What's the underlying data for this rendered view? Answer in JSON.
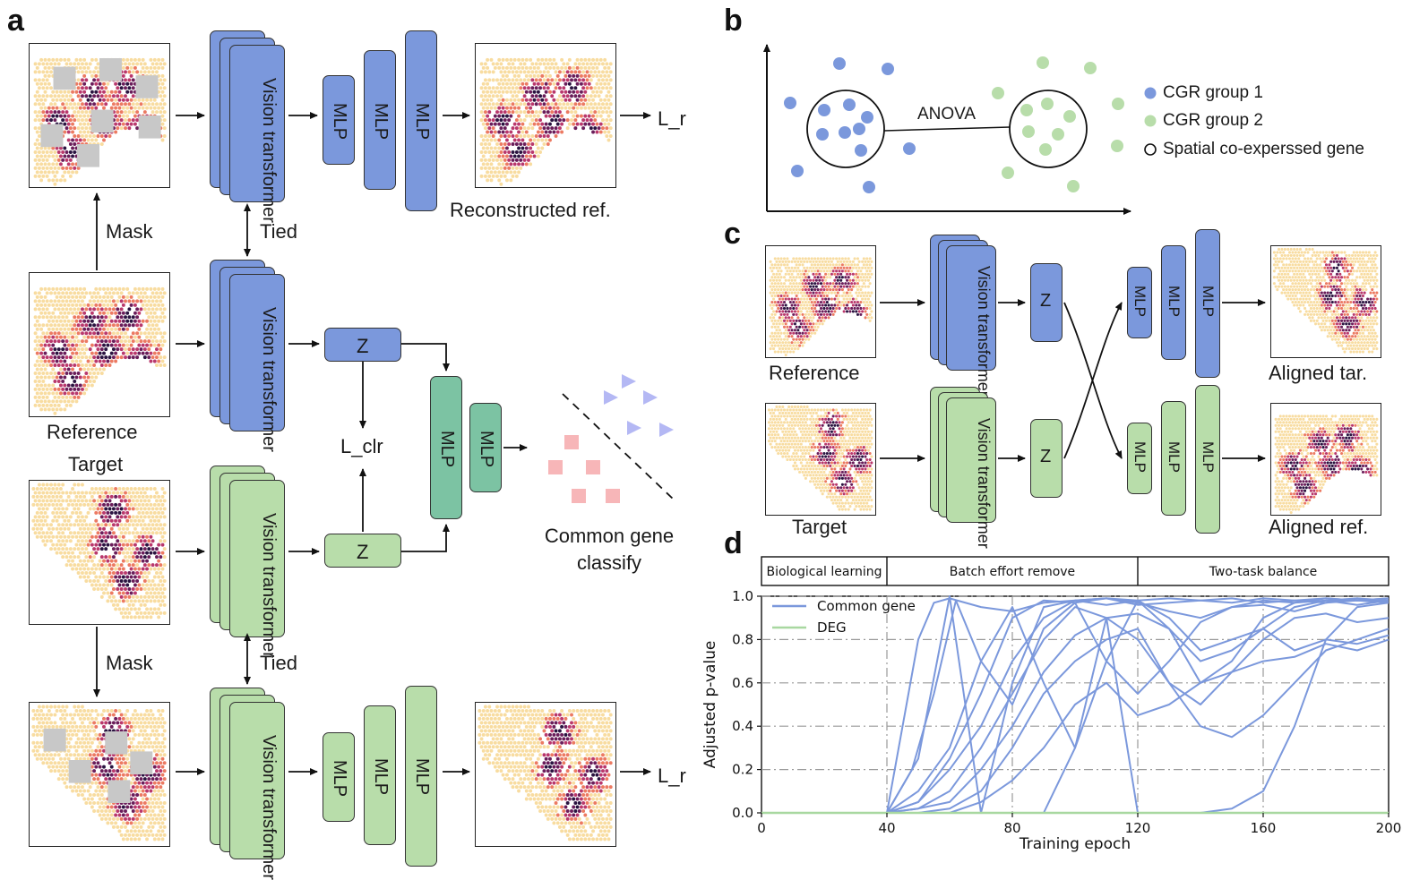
{
  "panels": {
    "a": "a",
    "b": "b",
    "c": "c",
    "d": "d"
  },
  "panel_a": {
    "vision_transformer": "Vision transformer",
    "mlp": "MLP",
    "z": "Z",
    "mask": "Mask",
    "tied": "Tied",
    "loss_r": "L_r",
    "loss_clr": "L_clr",
    "reconstructed_ref": "Reconstructed ref.",
    "reference": "Reference",
    "target": "Target",
    "classify": "Common gene classify"
  },
  "panel_b": {
    "anova": "ANOVA",
    "legend": [
      {
        "label": "CGR group 1",
        "color": "#7b98dc",
        "marker": "filled-circle"
      },
      {
        "label": "CGR group 2",
        "color": "#b8ddaa",
        "marker": "filled-circle"
      },
      {
        "label": "Spatial co-experssed gene",
        "color": "#111111",
        "marker": "open-circle"
      }
    ]
  },
  "panel_c": {
    "vision_transformer": "Vision transformer",
    "mlp": "MLP",
    "z": "Z",
    "reference": "Reference",
    "target": "Target",
    "aligned_tar": "Aligned tar.",
    "aligned_ref": "Aligned ref."
  },
  "colors": {
    "blue": "#7b98dc",
    "green": "#b8ddaa",
    "teal": "#7cc3a3",
    "triangle": "#b4b8f4",
    "square": "#f7b6b8"
  },
  "chart_data": {
    "type": "line",
    "xlabel": "Training epoch",
    "ylabel": "Adjusted p-value",
    "xlim": [
      0,
      200
    ],
    "ylim": [
      0,
      1.0
    ],
    "xticks": [
      0,
      40,
      80,
      120,
      160,
      200
    ],
    "yticks": [
      0.0,
      0.2,
      0.4,
      0.6,
      0.8,
      1.0
    ],
    "grid": true,
    "legend_position": "top-left",
    "phases": [
      {
        "label": "Biological learning",
        "start": 0,
        "end": 40
      },
      {
        "label": "Batch effort remove",
        "start": 40,
        "end": 120
      },
      {
        "label": "Two-task balance",
        "start": 120,
        "end": 200
      }
    ],
    "legend": [
      {
        "label": "Common gene",
        "color": "#7b98dc"
      },
      {
        "label": "DEG",
        "color": "#a8d8a0"
      }
    ],
    "series": [
      {
        "name": "Common gene",
        "color": "#7b98dc",
        "x": [
          0,
          40,
          45,
          50,
          55,
          60,
          70,
          80,
          90,
          100,
          110,
          120,
          130,
          140,
          150,
          160,
          170,
          180,
          190,
          200
        ],
        "y": [
          0,
          0,
          0.4,
          0.8,
          0.97,
          0.99,
          0.95,
          0.93,
          0.97,
          0.98,
          0.96,
          0.98,
          0.99,
          0.98,
          0.97,
          0.99,
          0.98,
          0.97,
          0.98,
          0.97
        ]
      },
      {
        "name": "Common gene",
        "color": "#7b98dc",
        "x": [
          0,
          40,
          50,
          60,
          70,
          80,
          90,
          100,
          110,
          120,
          130,
          140,
          150,
          160,
          170,
          180,
          190,
          200
        ],
        "y": [
          0,
          0,
          0.25,
          1.0,
          0.0,
          0.6,
          0.95,
          0.98,
          0.99,
          0.96,
          0.97,
          0.98,
          0.99,
          0.97,
          0.98,
          0.99,
          0.98,
          0.99
        ]
      },
      {
        "name": "Common gene",
        "color": "#7b98dc",
        "x": [
          0,
          40,
          48,
          55,
          62,
          70,
          80,
          90,
          100,
          110,
          120,
          130,
          140,
          150,
          160,
          170,
          180,
          190,
          200
        ],
        "y": [
          0,
          0,
          0.2,
          0.55,
          0.98,
          0.7,
          0.5,
          0.85,
          0.97,
          0.99,
          0.97,
          0.93,
          0.9,
          0.95,
          0.98,
          0.97,
          0.98,
          0.96,
          0.98
        ]
      },
      {
        "name": "Common gene",
        "color": "#7b98dc",
        "x": [
          0,
          40,
          50,
          60,
          70,
          80,
          90,
          100,
          110,
          120,
          130,
          140,
          150,
          160,
          170,
          180,
          190,
          200
        ],
        "y": [
          0,
          0,
          0.1,
          0.3,
          0.7,
          0.95,
          0.6,
          0.3,
          0.7,
          0.98,
          0.85,
          0.6,
          0.7,
          0.9,
          0.97,
          0.99,
          0.98,
          0.99
        ]
      },
      {
        "name": "Common gene",
        "color": "#7b98dc",
        "x": [
          0,
          40,
          50,
          60,
          70,
          80,
          90,
          100,
          110,
          120,
          130,
          140,
          150,
          160,
          170,
          180,
          190,
          200
        ],
        "y": [
          0,
          0,
          0.05,
          0.25,
          0.55,
          0.9,
          0.98,
          0.97,
          0.7,
          0.55,
          0.7,
          0.88,
          0.95,
          0.96,
          0.93,
          0.97,
          0.99,
          0.97
        ]
      },
      {
        "name": "Common gene",
        "color": "#7b98dc",
        "x": [
          0,
          40,
          50,
          60,
          70,
          80,
          90,
          100,
          110,
          120,
          130,
          140,
          150,
          160,
          170,
          180,
          190,
          200
        ],
        "y": [
          0,
          0,
          0.05,
          0.2,
          0.4,
          0.7,
          0.9,
          0.98,
          0.99,
          0.98,
          0.9,
          0.75,
          0.8,
          0.85,
          0.95,
          0.98,
          0.99,
          0.98
        ]
      },
      {
        "name": "Common gene",
        "color": "#7b98dc",
        "x": [
          0,
          40,
          50,
          60,
          70,
          80,
          90,
          100,
          110,
          120,
          130,
          140,
          150,
          160,
          170,
          180,
          190,
          200
        ],
        "y": [
          0,
          0,
          0.02,
          0.1,
          0.3,
          0.55,
          0.8,
          0.95,
          0.9,
          0.8,
          0.6,
          0.5,
          0.65,
          0.8,
          0.9,
          0.92,
          0.88,
          0.9
        ]
      },
      {
        "name": "Common gene",
        "color": "#7b98dc",
        "x": [
          0,
          40,
          50,
          60,
          70,
          80,
          90,
          100,
          110,
          120,
          130,
          140,
          150,
          160,
          170,
          180,
          190,
          200
        ],
        "y": [
          0,
          0,
          0.02,
          0.05,
          0.2,
          0.4,
          0.65,
          0.82,
          0.9,
          0.92,
          0.85,
          0.7,
          0.75,
          0.85,
          0.75,
          0.8,
          0.78,
          0.82
        ]
      },
      {
        "name": "Common gene",
        "color": "#7b98dc",
        "x": [
          0,
          40,
          50,
          60,
          70,
          80,
          90,
          100,
          110,
          120,
          130,
          140,
          150,
          160,
          170,
          180,
          190,
          200
        ],
        "y": [
          0,
          0,
          0,
          0.02,
          0.1,
          0.3,
          0.55,
          0.7,
          0.8,
          0.85,
          0.6,
          0.4,
          0.35,
          0.45,
          0.6,
          0.75,
          0.8,
          0.85
        ]
      },
      {
        "name": "Common gene",
        "color": "#7b98dc",
        "x": [
          0,
          40,
          50,
          60,
          70,
          80,
          90,
          100,
          110,
          120,
          130,
          140,
          150,
          160,
          170,
          180,
          190,
          200
        ],
        "y": [
          0,
          0,
          0,
          0,
          0.05,
          0.15,
          0.3,
          0.5,
          0.6,
          0.45,
          0.5,
          0.6,
          0.65,
          0.7,
          0.72,
          0.78,
          0.75,
          0.8
        ]
      },
      {
        "name": "Common gene",
        "color": "#7b98dc",
        "x": [
          0,
          40,
          60,
          80,
          90,
          100,
          110,
          120,
          130,
          140,
          150,
          160,
          170,
          180,
          190,
          200
        ],
        "y": [
          0,
          0,
          0,
          0,
          0,
          0.3,
          0.9,
          0.0,
          0.0,
          0.0,
          0.02,
          0.1,
          0.4,
          0.8,
          0.95,
          0.97
        ]
      },
      {
        "name": "DEG",
        "color": "#a8d8a0",
        "x": [
          0,
          200
        ],
        "y": [
          0,
          0
        ]
      }
    ]
  }
}
